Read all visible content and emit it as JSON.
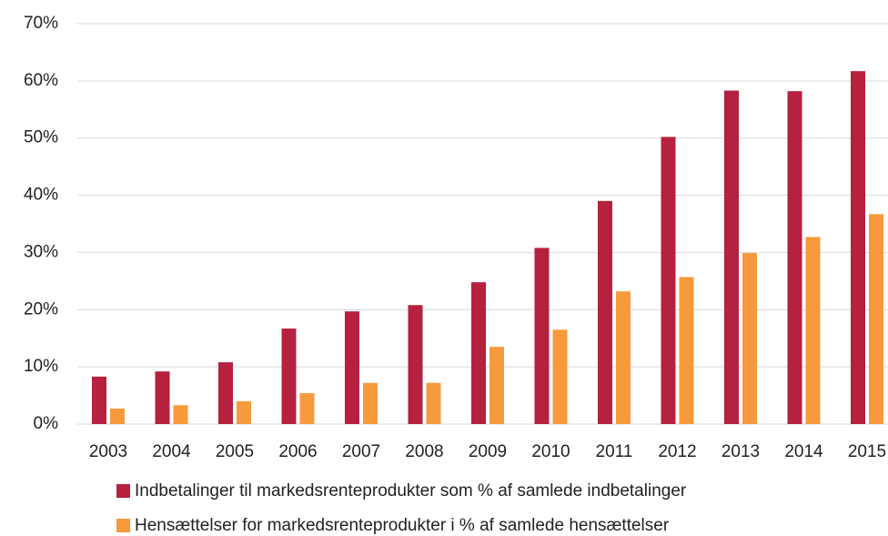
{
  "chart_data": {
    "type": "bar",
    "categories": [
      "2003",
      "2004",
      "2005",
      "2006",
      "2007",
      "2008",
      "2009",
      "2010",
      "2011",
      "2012",
      "2013",
      "2014",
      "2015"
    ],
    "series": [
      {
        "name": "Indbetalinger til markedsrenteprodukter som % af samlede indbetalinger",
        "color": "#b5213e",
        "values": [
          8.3,
          9.2,
          10.8,
          16.7,
          19.7,
          20.8,
          24.8,
          30.8,
          39.0,
          50.2,
          58.3,
          58.2,
          61.7
        ]
      },
      {
        "name": "Hensættelser for markedsrenteprodukter i % af samlede hensættelser",
        "color": "#f79a3c",
        "values": [
          2.7,
          3.3,
          4.0,
          5.4,
          7.2,
          7.2,
          13.5,
          16.5,
          23.2,
          25.7,
          29.9,
          32.7,
          36.7
        ]
      }
    ],
    "ylim": [
      0,
      70
    ],
    "yticks": [
      {
        "value": 0,
        "label": "0%"
      },
      {
        "value": 10,
        "label": "10%"
      },
      {
        "value": 20,
        "label": "20%"
      },
      {
        "value": 30,
        "label": "30%"
      },
      {
        "value": 40,
        "label": "40%"
      },
      {
        "value": 50,
        "label": "50%"
      },
      {
        "value": 60,
        "label": "60%"
      },
      {
        "value": 70,
        "label": "70%"
      }
    ],
    "grid": true
  }
}
